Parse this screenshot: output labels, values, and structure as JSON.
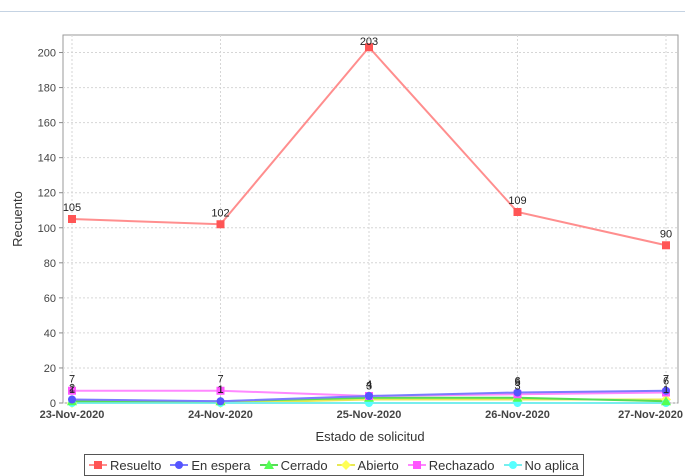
{
  "chart_data": {
    "type": "line",
    "title": "",
    "xlabel": "Estado de solicitud",
    "ylabel": "Recuento",
    "categories": [
      "23-Nov-2020",
      "24-Nov-2020",
      "25-Nov-2020",
      "26-Nov-2020",
      "27-Nov-2020"
    ],
    "ylim": [
      0,
      210
    ],
    "yticks": [
      0,
      20,
      40,
      60,
      80,
      100,
      120,
      140,
      160,
      180,
      200
    ],
    "grid": true,
    "legend_position": "bottom",
    "series": [
      {
        "name": "Resuelto",
        "color": "#ff5555",
        "line_color": "#ff8e8e",
        "marker": "square",
        "values": [
          105,
          102,
          203,
          109,
          90
        ],
        "labels": [
          "105",
          "102",
          "203",
          "109",
          "90"
        ]
      },
      {
        "name": "En espera",
        "color": "#5555ff",
        "line_color": "#7b7bff",
        "marker": "circle",
        "values": [
          2,
          1,
          4,
          6,
          7
        ],
        "labels": [
          "2",
          "1",
          "4",
          "6",
          "7"
        ]
      },
      {
        "name": "Cerrado",
        "color": "#55ff55",
        "line_color": "#55dd55",
        "marker": "triangle",
        "values": [
          1,
          1,
          3,
          3,
          1
        ],
        "labels": [
          "1",
          "1",
          "3",
          "3",
          "1"
        ]
      },
      {
        "name": "Abierto",
        "color": "#ffff55",
        "line_color": "#e8e855",
        "marker": "diamond",
        "values": [
          0,
          0,
          2,
          2,
          2
        ],
        "labels": [
          " ",
          " ",
          " ",
          " ",
          " "
        ]
      },
      {
        "name": "Rechazado",
        "color": "#ff55ff",
        "line_color": "#ff88ff",
        "marker": "square",
        "values": [
          7,
          7,
          4,
          5,
          6
        ],
        "labels": [
          "7",
          "7",
          "4",
          "5",
          "6"
        ]
      },
      {
        "name": "No aplica",
        "color": "#55ffff",
        "line_color": "#77eeee",
        "marker": "circle",
        "values": [
          0,
          0,
          0,
          0,
          0
        ],
        "labels": [
          " ",
          " ",
          " ",
          " ",
          " "
        ]
      }
    ]
  }
}
